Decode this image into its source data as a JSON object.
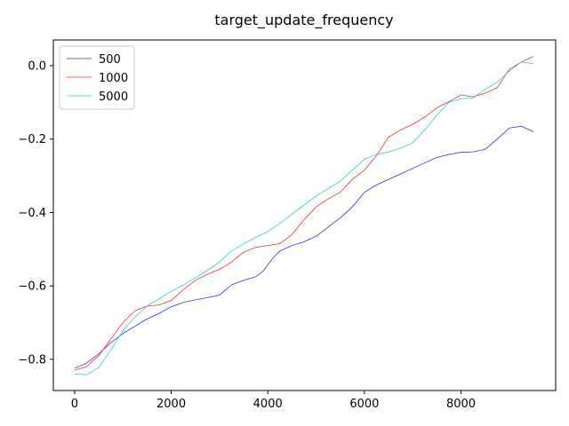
{
  "chart_data": {
    "type": "line",
    "title": "target_update_frequency",
    "xlabel": "",
    "ylabel": "",
    "xlim": [
      -440,
      9960
    ],
    "ylim": [
      -0.885,
      0.07
    ],
    "x_ticks": [
      0,
      2000,
      4000,
      6000,
      8000
    ],
    "x_tick_labels": [
      "0",
      "2000",
      "4000",
      "6000",
      "8000"
    ],
    "y_ticks": [
      -0.8,
      -0.6,
      -0.4,
      -0.2,
      0.0
    ],
    "y_tick_labels": [
      "−0.8",
      "−0.6",
      "−0.4",
      "−0.2",
      "0.0"
    ],
    "grid": false,
    "legend_position": "top-left",
    "series": [
      {
        "name": "500",
        "color": "#3333ee",
        "x": [
          0,
          250,
          500,
          750,
          1000,
          1250,
          1500,
          1750,
          2000,
          2250,
          2500,
          2750,
          3000,
          3250,
          3500,
          3750,
          3900,
          4100,
          4250,
          4500,
          4750,
          5000,
          5250,
          5500,
          5750,
          6000,
          6250,
          6500,
          6750,
          7000,
          7250,
          7500,
          7750,
          8000,
          8250,
          8500,
          8750,
          9000,
          9250,
          9500
        ],
        "y": [
          -0.825,
          -0.81,
          -0.785,
          -0.755,
          -0.73,
          -0.71,
          -0.69,
          -0.675,
          -0.657,
          -0.645,
          -0.638,
          -0.632,
          -0.625,
          -0.597,
          -0.585,
          -0.575,
          -0.56,
          -0.525,
          -0.505,
          -0.49,
          -0.48,
          -0.465,
          -0.44,
          -0.415,
          -0.385,
          -0.345,
          -0.325,
          -0.31,
          -0.295,
          -0.28,
          -0.265,
          -0.25,
          -0.242,
          -0.236,
          -0.235,
          -0.228,
          -0.2,
          -0.17,
          -0.165,
          -0.18
        ]
      },
      {
        "name": "1000",
        "color": "#ee3333",
        "x": [
          0,
          250,
          500,
          750,
          1000,
          1250,
          1500,
          1750,
          2000,
          2250,
          2500,
          2750,
          3000,
          3250,
          3500,
          3750,
          4000,
          4250,
          4500,
          4750,
          5000,
          5250,
          5500,
          5750,
          6000,
          6250,
          6500,
          6750,
          7000,
          7250,
          7500,
          7750,
          8000,
          8250,
          8500,
          8750,
          9000,
          9250,
          9500
        ],
        "y": [
          -0.83,
          -0.82,
          -0.79,
          -0.745,
          -0.7,
          -0.668,
          -0.655,
          -0.652,
          -0.64,
          -0.61,
          -0.585,
          -0.568,
          -0.555,
          -0.535,
          -0.508,
          -0.495,
          -0.49,
          -0.485,
          -0.46,
          -0.42,
          -0.385,
          -0.363,
          -0.345,
          -0.31,
          -0.285,
          -0.245,
          -0.195,
          -0.175,
          -0.16,
          -0.14,
          -0.115,
          -0.098,
          -0.08,
          -0.085,
          -0.075,
          -0.06,
          -0.01,
          0.01,
          0.025
        ]
      },
      {
        "name": "5000",
        "color": "#33cccc",
        "x": [
          0,
          250,
          500,
          750,
          1000,
          1250,
          1500,
          1750,
          2000,
          2250,
          2500,
          2750,
          3000,
          3250,
          3500,
          3750,
          4000,
          4250,
          4500,
          4750,
          5000,
          5250,
          5500,
          5750,
          6000,
          6250,
          6500,
          6750,
          7000,
          7250,
          7500,
          7750,
          8000,
          8250,
          8500,
          8750,
          9000,
          9250,
          9500
        ],
        "y": [
          -0.84,
          -0.842,
          -0.822,
          -0.775,
          -0.722,
          -0.685,
          -0.655,
          -0.635,
          -0.615,
          -0.598,
          -0.578,
          -0.558,
          -0.535,
          -0.505,
          -0.485,
          -0.468,
          -0.452,
          -0.43,
          -0.405,
          -0.38,
          -0.355,
          -0.335,
          -0.315,
          -0.285,
          -0.255,
          -0.242,
          -0.235,
          -0.225,
          -0.21,
          -0.175,
          -0.135,
          -0.1,
          -0.09,
          -0.088,
          -0.065,
          -0.045,
          -0.015,
          0.01,
          0.005
        ]
      }
    ]
  }
}
